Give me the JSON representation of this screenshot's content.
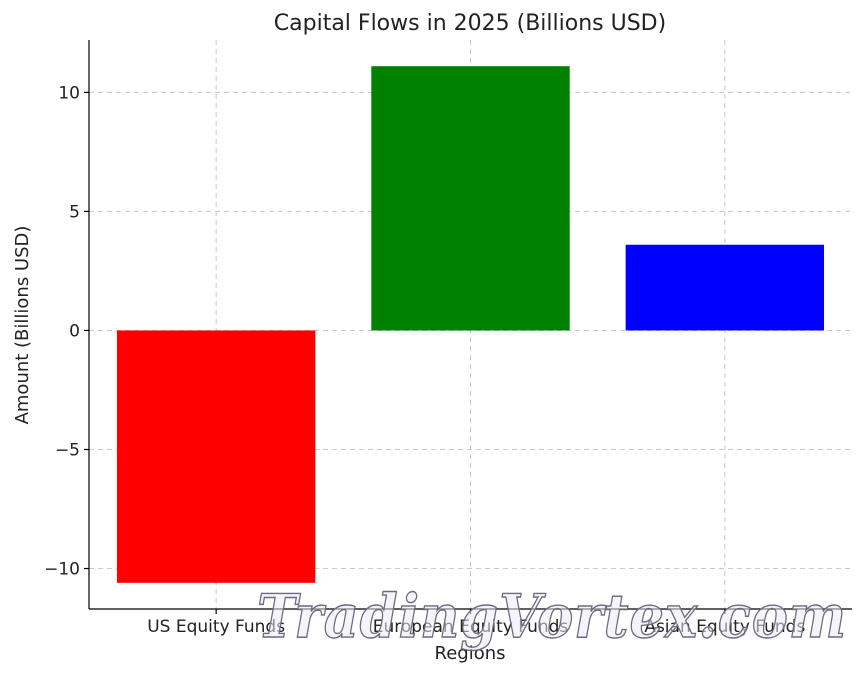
{
  "chart_data": {
    "type": "bar",
    "title": "Capital Flows in 2025 (Billions USD)",
    "xlabel": "Regions",
    "ylabel": "Amount (Billions USD)",
    "categories": [
      "US Equity Funds",
      "European Equity Funds",
      "Asian Equity Funds"
    ],
    "values": [
      -10.6,
      11.1,
      3.6
    ],
    "colors": [
      "#ff0000",
      "#008000",
      "#0000ff"
    ],
    "ylim": [
      -11.7,
      12.2
    ],
    "yticks": [
      -10,
      -5,
      0,
      5,
      10
    ],
    "ytick_labels": [
      "−10",
      "−5",
      "0",
      "5",
      "10"
    ],
    "grid": true
  },
  "watermark": "TradingVortex.com"
}
